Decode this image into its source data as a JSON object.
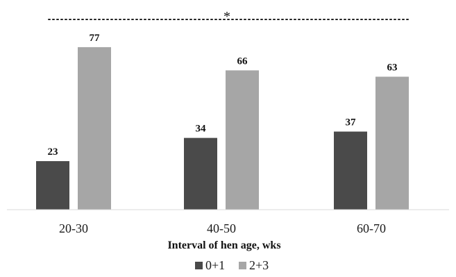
{
  "chart_data": {
    "type": "bar",
    "categories": [
      "20-30",
      "40-50",
      "60-70"
    ],
    "series": [
      {
        "name": "0+1",
        "values": [
          23,
          34,
          37
        ],
        "color": "#4a4a4a"
      },
      {
        "name": "2+3",
        "values": [
          77,
          66,
          63
        ],
        "color": "#a6a6a6"
      }
    ],
    "xlabel": "Interval of hen age, wks",
    "ylabel": "",
    "ylim": [
      0,
      100
    ],
    "grid": false,
    "legend": "bottom-center",
    "annotation": "*",
    "annotation_line": "dotted"
  }
}
